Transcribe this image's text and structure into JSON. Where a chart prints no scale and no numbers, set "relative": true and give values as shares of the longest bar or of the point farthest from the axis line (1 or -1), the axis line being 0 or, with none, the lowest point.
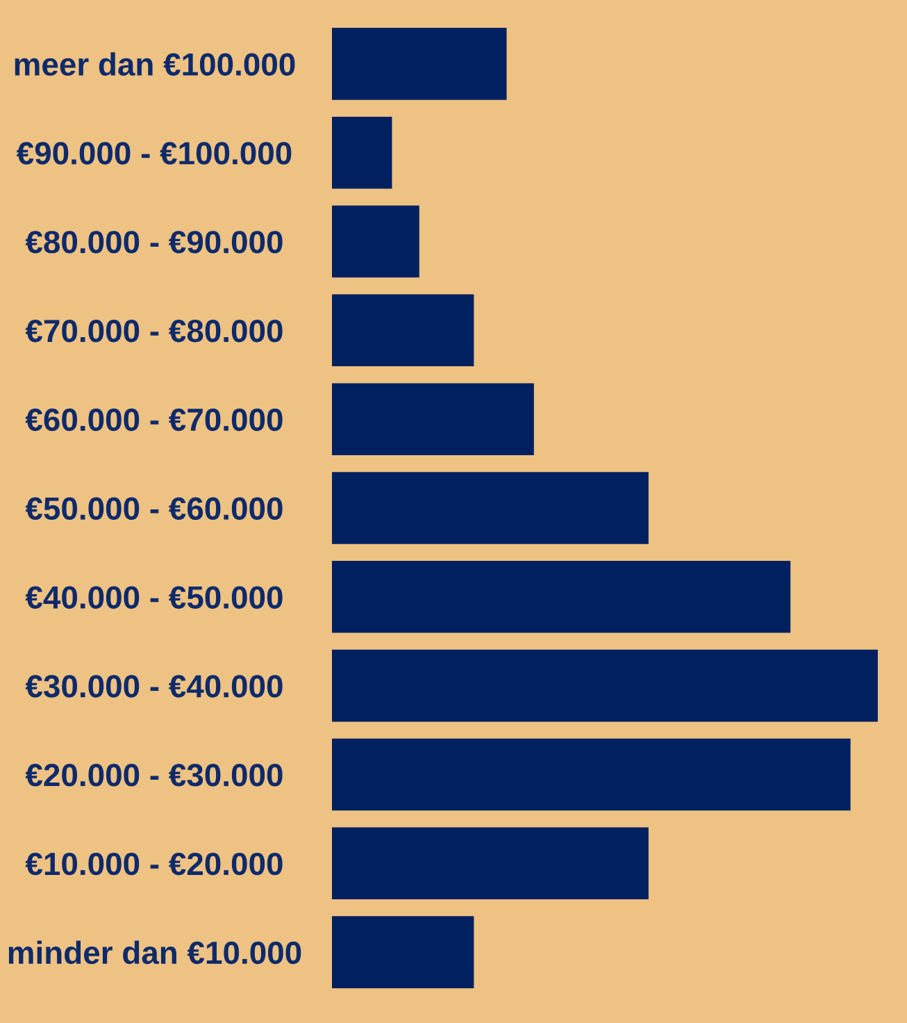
{
  "chart_data": {
    "type": "bar",
    "orientation": "horizontal",
    "relative": true,
    "categories": [
      "meer dan €100.000",
      "€90.000 - €100.000",
      "€80.000 - €90.000",
      "€70.000 - €80.000",
      "€60.000 - €70.000",
      "€50.000 - €60.000",
      "€40.000 - €50.000",
      "€30.000 - €40.000",
      "€20.000 - €30.000",
      "€10.000 - €20.000",
      "minder dan €10.000"
    ],
    "values": [
      0.32,
      0.11,
      0.16,
      0.26,
      0.37,
      0.58,
      0.84,
      1,
      0.95,
      0.58,
      0.26
    ],
    "color": "#002060"
  }
}
